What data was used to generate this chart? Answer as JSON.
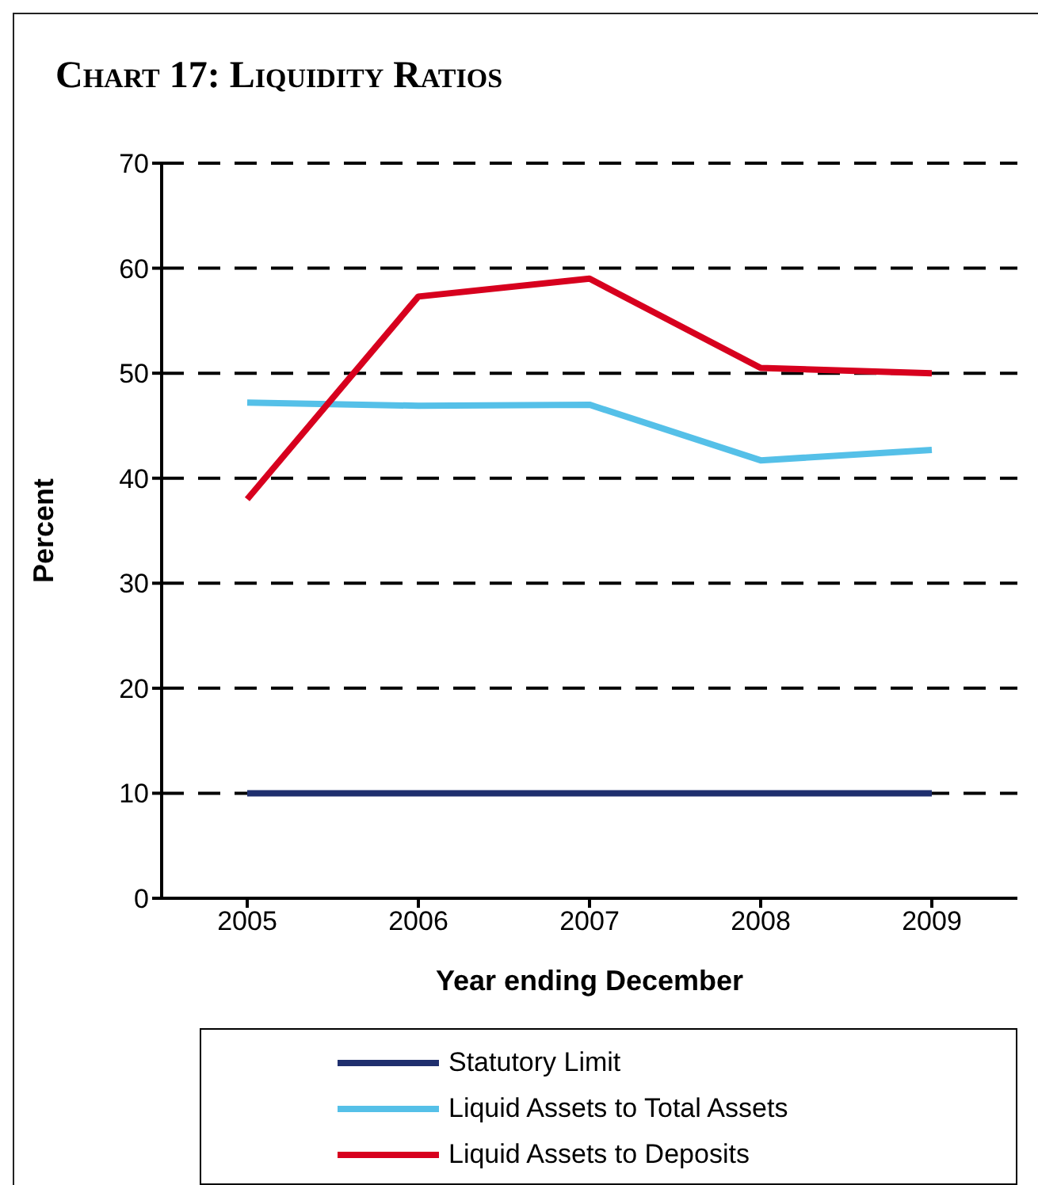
{
  "chart_data": {
    "type": "line",
    "title": "Chart 17: Liquidity Ratios",
    "xlabel": "Year ending December",
    "ylabel": "Percent",
    "categories": [
      "2005",
      "2006",
      "2007",
      "2008",
      "2009"
    ],
    "series": [
      {
        "name": "Statutory Limit",
        "color": "#1f2f6e",
        "values": [
          10,
          10,
          10,
          10,
          10
        ]
      },
      {
        "name": "Liquid Assets to Total Assets",
        "color": "#55c0e8",
        "values": [
          47.2,
          46.9,
          47,
          41.7,
          42.7
        ]
      },
      {
        "name": "Liquid Assets to Deposits",
        "color": "#d7001e",
        "values": [
          38,
          57.3,
          59,
          50.5,
          50
        ]
      }
    ],
    "ylim": [
      0,
      70
    ],
    "yticks": [
      0,
      10,
      20,
      30,
      40,
      50,
      60,
      70
    ],
    "grid": "y",
    "legend": "bottom"
  }
}
